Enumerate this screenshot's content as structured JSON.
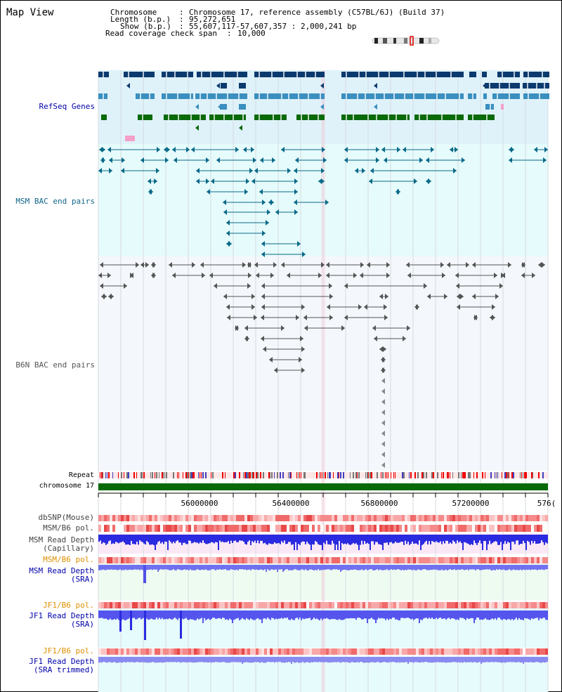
{
  "view_title": "Map View",
  "info": {
    "chromosome_key": "Chromosome",
    "chromosome_val": "Chromosome 17, reference assembly (C57BL/6J) (Build 37)",
    "length_key": "Length (b.p.)",
    "length_val": "95,272,651",
    "show_key": "Show (b.p.)",
    "show_val": "55,607,117-57,607,357 : 2,000,241 bp",
    "span_key": "Read coverage check span",
    "span_val": "10,000"
  },
  "tracks": {
    "refseq": "RefSeq Genes",
    "msm_bac": "MSM BAC end pairs",
    "b6n_bac": "B6N BAC end pairs",
    "repeat": "Repeat",
    "chromosome": "chromosome 17",
    "dbsnp": "dbSNP(Mouse)",
    "msm_b6_pol1": "MSM/B6 pol.",
    "msm_depth_cap_1": "MSM Read Depth",
    "msm_depth_cap_2": "(Capillary)",
    "msm_b6_pol2": "MSM/B6 pol.",
    "msm_depth_sra_1": "MSM Read Depth",
    "msm_depth_sra_2": "(SRA)",
    "jf1_b6_pol1": "JF1/B6 pol.",
    "jf1_depth_sra_1": "JF1 Read Depth",
    "jf1_depth_sra_2": "(SRA)",
    "jf1_b6_pol2": "JF1/B6 pol.",
    "jf1_depth_trim_1": "JF1 Read Depth",
    "jf1_depth_trim_2": "(SRA trimmed)"
  },
  "axis": {
    "ticks": [
      "56000000",
      "56400000",
      "56800000",
      "57200000",
      "576("
    ]
  },
  "colors": {
    "refseq_dark": "#0b3a6e",
    "refseq_mid": "#3a8fbf",
    "refseq_green": "#0a6a0a",
    "msm_bac_line": "#0a6a8a",
    "b6n_bac_line": "#555555",
    "chromosome_bar": "#0a6a0a",
    "label_blue": "#0000aa",
    "label_teal": "#116688",
    "label_orange": "#e09000"
  }
}
